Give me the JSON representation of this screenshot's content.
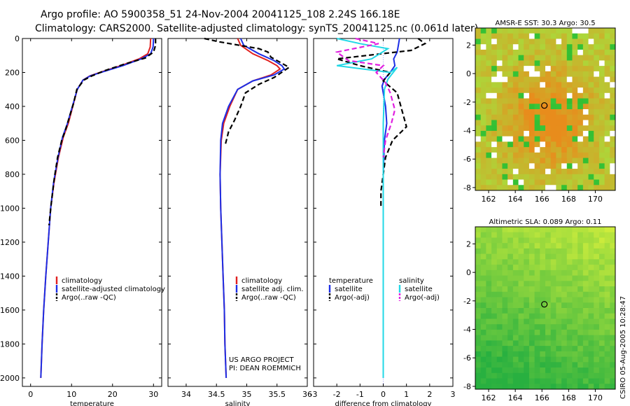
{
  "header": {
    "title_line1": "Argo profile: AO 5900358_51 24-Nov-2004 20041125_108 2.24S 166.18E",
    "title_line2": "Climatology: CARS2000. Satellite-adjusted climatology: synTS_20041125.nc (0.061d later)"
  },
  "credit": {
    "project": "US ARGO PROJECT",
    "pi": "PI: DEAN ROEMMICH",
    "vertical": "CSIRO 05-Aug-2005 10:28:47"
  },
  "chart_data": [
    {
      "id": "temperature",
      "type": "line",
      "xlabel": "temperature",
      "ylabel": "",
      "xlim": [
        -2,
        32
      ],
      "ylim": [
        2050,
        0
      ],
      "xticks": [
        0,
        10,
        20,
        30
      ],
      "yticks": [
        0,
        200,
        400,
        600,
        800,
        1000,
        1200,
        1400,
        1600,
        1800,
        2000
      ],
      "legend": [
        {
          "label": "climatology",
          "color": "#e02020",
          "style": "solid"
        },
        {
          "label": "satellite-adjusted climatology",
          "color": "#1c2ee6",
          "style": "solid"
        },
        {
          "label": "Argo(..raw -QC)",
          "color": "#000000",
          "style": "dashed"
        }
      ],
      "series": [
        {
          "name": "climatology",
          "color": "#e02020",
          "style": "solid",
          "points": [
            [
              29.3,
              0
            ],
            [
              29.2,
              50
            ],
            [
              28.6,
              90
            ],
            [
              26.5,
              120
            ],
            [
              22.0,
              160
            ],
            [
              17.5,
              195
            ],
            [
              14.5,
              220
            ],
            [
              12.8,
              245
            ],
            [
              11.4,
              300
            ],
            [
              10.3,
              400
            ],
            [
              9.2,
              500
            ],
            [
              8.0,
              580
            ],
            [
              6.8,
              700
            ],
            [
              5.7,
              850
            ],
            [
              4.9,
              1000
            ],
            [
              4.3,
              1200
            ],
            [
              3.7,
              1400
            ],
            [
              3.2,
              1600
            ],
            [
              2.8,
              1800
            ],
            [
              2.5,
              2000
            ]
          ]
        },
        {
          "name": "satellite-adjusted climatology",
          "color": "#1c2ee6",
          "style": "solid",
          "points": [
            [
              30.0,
              0
            ],
            [
              29.9,
              50
            ],
            [
              29.3,
              90
            ],
            [
              27.0,
              120
            ],
            [
              22.5,
              160
            ],
            [
              17.8,
              195
            ],
            [
              14.6,
              220
            ],
            [
              12.8,
              245
            ],
            [
              11.4,
              300
            ],
            [
              10.2,
              400
            ],
            [
              9.0,
              500
            ],
            [
              7.8,
              580
            ],
            [
              6.7,
              700
            ],
            [
              5.6,
              850
            ],
            [
              4.9,
              1000
            ],
            [
              4.3,
              1200
            ],
            [
              3.7,
              1400
            ],
            [
              3.2,
              1600
            ],
            [
              2.8,
              1800
            ],
            [
              2.5,
              2000
            ]
          ]
        },
        {
          "name": "Argo(..raw -QC)",
          "color": "#000000",
          "style": "dashed",
          "points": [
            [
              30.5,
              0
            ],
            [
              30.5,
              40
            ],
            [
              30.0,
              80
            ],
            [
              28.0,
              115
            ],
            [
              23.0,
              150
            ],
            [
              18.0,
              190
            ],
            [
              15.0,
              220
            ],
            [
              13.0,
              245
            ],
            [
              11.3,
              300
            ],
            [
              10.5,
              380
            ],
            [
              9.5,
              460
            ],
            [
              8.5,
              540
            ],
            [
              7.6,
              600
            ],
            [
              6.6,
              700
            ],
            [
              5.8,
              820
            ],
            [
              5.0,
              980
            ],
            [
              4.5,
              1100
            ]
          ]
        }
      ]
    },
    {
      "id": "salinity",
      "type": "line",
      "xlabel": "salinity",
      "ylabel": "",
      "xlim": [
        33.7,
        36.0
      ],
      "ylim": [
        2050,
        0
      ],
      "xticks": [
        34,
        34.5,
        35,
        35.5,
        36
      ],
      "yticks": [
        0,
        200,
        400,
        600,
        800,
        1000,
        1200,
        1400,
        1600,
        1800,
        2000
      ],
      "legend": [
        {
          "label": "climatology",
          "color": "#e02020",
          "style": "solid"
        },
        {
          "label": "satellite adj. clim.",
          "color": "#1c2ee6",
          "style": "solid"
        },
        {
          "label": "Argo(..raw -QC)",
          "color": "#000000",
          "style": "dashed"
        }
      ],
      "series": [
        {
          "name": "climatology",
          "color": "#e02020",
          "style": "solid",
          "points": [
            [
              34.85,
              0
            ],
            [
              34.9,
              40
            ],
            [
              35.1,
              90
            ],
            [
              35.35,
              130
            ],
            [
              35.5,
              160
            ],
            [
              35.55,
              180
            ],
            [
              35.4,
              215
            ],
            [
              35.1,
              250
            ],
            [
              34.85,
              300
            ],
            [
              34.72,
              400
            ],
            [
              34.62,
              500
            ],
            [
              34.58,
              600
            ],
            [
              34.56,
              800
            ],
            [
              34.57,
              1000
            ],
            [
              34.59,
              1200
            ],
            [
              34.61,
              1400
            ],
            [
              34.63,
              1600
            ],
            [
              34.64,
              1800
            ],
            [
              34.66,
              2000
            ]
          ]
        },
        {
          "name": "satellite adj. clim.",
          "color": "#1c2ee6",
          "style": "solid",
          "points": [
            [
              34.9,
              0
            ],
            [
              34.95,
              40
            ],
            [
              35.2,
              90
            ],
            [
              35.45,
              130
            ],
            [
              35.58,
              160
            ],
            [
              35.62,
              180
            ],
            [
              35.45,
              215
            ],
            [
              35.1,
              250
            ],
            [
              34.85,
              300
            ],
            [
              34.7,
              400
            ],
            [
              34.6,
              500
            ],
            [
              34.57,
              600
            ],
            [
              34.56,
              800
            ],
            [
              34.57,
              1000
            ],
            [
              34.59,
              1200
            ],
            [
              34.61,
              1400
            ],
            [
              34.63,
              1600
            ],
            [
              34.64,
              1800
            ],
            [
              34.66,
              2000
            ]
          ]
        },
        {
          "name": "Argo(..raw -QC)",
          "color": "#000000",
          "style": "dashed",
          "points": [
            [
              34.3,
              0
            ],
            [
              34.55,
              20
            ],
            [
              35.2,
              60
            ],
            [
              35.35,
              80
            ],
            [
              35.4,
              110
            ],
            [
              35.7,
              170
            ],
            [
              35.45,
              230
            ],
            [
              35.2,
              270
            ],
            [
              34.98,
              320
            ],
            [
              34.9,
              400
            ],
            [
              34.8,
              480
            ],
            [
              34.7,
              550
            ],
            [
              34.65,
              620
            ]
          ]
        }
      ]
    },
    {
      "id": "difference",
      "type": "line",
      "xlabel": "difference from climatology",
      "ylabel": "",
      "xlim": [
        -3,
        3
      ],
      "ylim": [
        2050,
        0
      ],
      "xticks": [
        -3,
        -2,
        -1,
        0,
        1,
        2,
        3
      ],
      "yticks": [
        0,
        200,
        400,
        600,
        800,
        1000,
        1200,
        1400,
        1600,
        1800,
        2000
      ],
      "legend": [
        {
          "label": "temperature",
          "color": "#000000",
          "style": "none"
        },
        {
          "label": "satellite",
          "color": "#1c2ee6",
          "style": "solid"
        },
        {
          "label": "Argo(-adj)",
          "color": "#000000",
          "style": "dashed"
        },
        {
          "label": "salinity",
          "color": "#000000",
          "style": "none"
        },
        {
          "label": "satellite",
          "color": "#22d8e6",
          "style": "solid"
        },
        {
          "label": "Argo(-adj)",
          "color": "#e020e0",
          "style": "dashed"
        }
      ],
      "series": [
        {
          "name": "temperature satellite",
          "color": "#1c2ee6",
          "style": "solid",
          "points": [
            [
              0.7,
              0
            ],
            [
              0.65,
              40
            ],
            [
              0.6,
              80
            ],
            [
              0.45,
              120
            ],
            [
              0.5,
              160
            ],
            [
              0.3,
              200
            ],
            [
              0.05,
              240
            ],
            [
              -0.05,
              280
            ],
            [
              0.1,
              400
            ],
            [
              0.15,
              500
            ],
            [
              0.05,
              600
            ],
            [
              0.0,
              800
            ],
            [
              0.0,
              2000
            ]
          ]
        },
        {
          "name": "temperature Argo(-adj)",
          "color": "#000000",
          "style": "dashed",
          "points": [
            [
              1.5,
              0
            ],
            [
              1.8,
              30
            ],
            [
              1.2,
              70
            ],
            [
              -2.0,
              120
            ],
            [
              -1.0,
              160
            ],
            [
              0.3,
              200
            ],
            [
              0.0,
              250
            ],
            [
              0.6,
              320
            ],
            [
              0.8,
              420
            ],
            [
              1.0,
              520
            ],
            [
              0.4,
              600
            ],
            [
              0.1,
              700
            ],
            [
              -0.1,
              900
            ],
            [
              -0.1,
              1000
            ]
          ]
        },
        {
          "name": "salinity satellite",
          "color": "#22d8e6",
          "style": "solid",
          "points": [
            [
              -2.0,
              0
            ],
            [
              -1.0,
              30
            ],
            [
              0.2,
              60
            ],
            [
              -0.5,
              120
            ],
            [
              -2.0,
              160
            ],
            [
              0.3,
              200
            ],
            [
              0.6,
              170
            ],
            [
              0.2,
              240
            ],
            [
              0.05,
              300
            ],
            [
              0.0,
              500
            ],
            [
              0.0,
              2000
            ]
          ]
        },
        {
          "name": "salinity Argo(-adj)",
          "color": "#e020e0",
          "style": "dashed",
          "points": [
            [
              -1.2,
              0
            ],
            [
              -0.2,
              30
            ],
            [
              -2.0,
              80
            ],
            [
              -1.5,
              130
            ],
            [
              0.0,
              160
            ],
            [
              -0.3,
              200
            ],
            [
              0.1,
              260
            ],
            [
              0.3,
              320
            ],
            [
              0.5,
              420
            ],
            [
              0.35,
              500
            ],
            [
              0.1,
              600
            ],
            [
              0.0,
              700
            ]
          ]
        }
      ]
    },
    {
      "id": "sst_map",
      "type": "heatmap",
      "title": "AMSR-E SST: 30.3 Argo: 30.5",
      "xlim": [
        161,
        171.5
      ],
      "ylim": [
        -8.2,
        3.2
      ],
      "xticks": [
        162,
        164,
        166,
        168,
        170
      ],
      "yticks": [
        2,
        0,
        -2,
        -4,
        -6,
        -8
      ],
      "marker": {
        "lon": 166.18,
        "lat": -2.24
      }
    },
    {
      "id": "sla_map",
      "type": "heatmap",
      "title": "Altimetric SLA: 0.089 Argo: 0.11",
      "xlim": [
        161,
        171.5
      ],
      "ylim": [
        -8.2,
        3.2
      ],
      "xticks": [
        162,
        164,
        166,
        168,
        170
      ],
      "yticks": [
        2,
        0,
        -2,
        -4,
        -6,
        -8
      ],
      "marker": {
        "lon": 166.18,
        "lat": -2.24
      }
    }
  ]
}
